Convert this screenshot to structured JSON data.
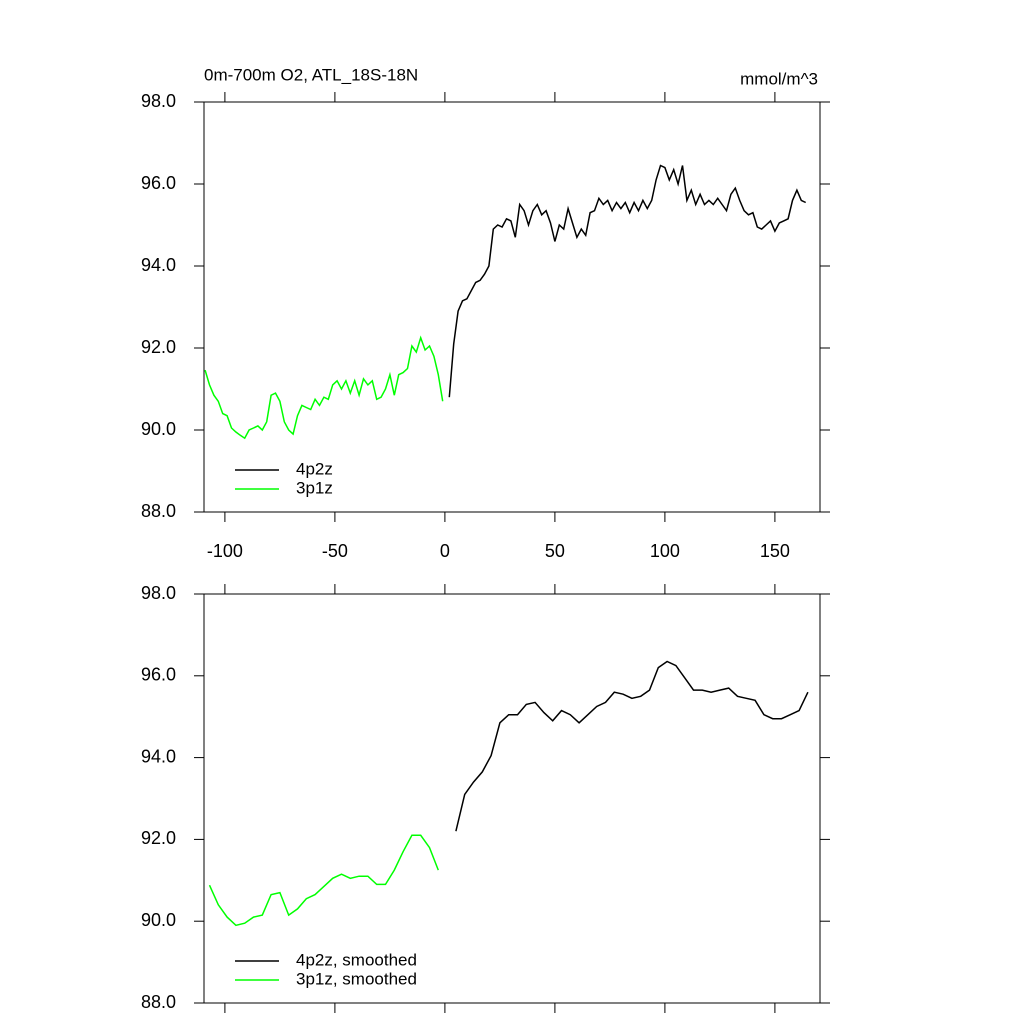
{
  "chart_data": [
    {
      "type": "line",
      "title": "0m-700m O2, ATL_18S-18N",
      "units": "mmol/m^3",
      "xlim": [
        -109.5,
        170.5
      ],
      "xticks": [
        -100,
        -50,
        0,
        50,
        100,
        150
      ],
      "show_xtick_labels": true,
      "ylim": [
        88,
        98
      ],
      "yticks": [
        {
          "value": 88,
          "label": "88.0"
        },
        {
          "value": 90,
          "label": "90.0"
        },
        {
          "value": 92,
          "label": "92.0"
        },
        {
          "value": 94,
          "label": "94.0"
        },
        {
          "value": 96,
          "label": "96.0"
        },
        {
          "value": 98,
          "label": "98.0"
        }
      ],
      "legend": "lower-left",
      "series": [
        {
          "name": "4p2z",
          "color": "#000000",
          "x": [
            2,
            4,
            6,
            8,
            10,
            12,
            14,
            16,
            18,
            20,
            22,
            24,
            26,
            28,
            30,
            32,
            34,
            36,
            38,
            40,
            42,
            44,
            46,
            48,
            50,
            52,
            54,
            56,
            58,
            60,
            62,
            64,
            66,
            68,
            70,
            72,
            74,
            76,
            78,
            80,
            82,
            84,
            86,
            88,
            90,
            92,
            94,
            96,
            98,
            100,
            102,
            104,
            106,
            108,
            110,
            112,
            114,
            116,
            118,
            120,
            122,
            124,
            126,
            128,
            130,
            132,
            134,
            136,
            138,
            140,
            142,
            144,
            146,
            148,
            150,
            152,
            154,
            156,
            158,
            160,
            162,
            164
          ],
          "values": [
            90.8,
            92.1,
            92.9,
            93.15,
            93.2,
            93.4,
            93.6,
            93.65,
            93.8,
            94.0,
            94.9,
            95.0,
            94.95,
            95.15,
            95.1,
            94.7,
            95.5,
            95.35,
            95.0,
            95.35,
            95.5,
            95.25,
            95.35,
            95.05,
            94.6,
            95.0,
            94.9,
            95.4,
            95.05,
            94.7,
            94.9,
            94.75,
            95.3,
            95.35,
            95.65,
            95.5,
            95.6,
            95.35,
            95.55,
            95.4,
            95.55,
            95.3,
            95.55,
            95.35,
            95.6,
            95.4,
            95.6,
            96.1,
            96.45,
            96.4,
            96.1,
            96.35,
            96.0,
            96.45,
            95.6,
            95.85,
            95.5,
            95.75,
            95.5,
            95.6,
            95.5,
            95.65,
            95.5,
            95.35,
            95.75,
            95.9,
            95.6,
            95.35,
            95.25,
            95.3,
            94.95,
            94.9,
            95.0,
            95.1,
            94.85,
            95.05,
            95.1,
            95.15,
            95.6,
            95.85,
            95.6,
            95.55
          ]
        },
        {
          "name": "3p1z",
          "color": "#00ff00",
          "x": [
            -109,
            -107,
            -105,
            -103,
            -101,
            -99,
            -97,
            -95,
            -93,
            -91,
            -89,
            -87,
            -85,
            -83,
            -81,
            -79,
            -77,
            -75,
            -73,
            -71,
            -69,
            -67,
            -65,
            -63,
            -61,
            -59,
            -57,
            -55,
            -53,
            -51,
            -49,
            -47,
            -45,
            -43,
            -41,
            -39,
            -37,
            -35,
            -33,
            -31,
            -29,
            -27,
            -25,
            -23,
            -21,
            -19,
            -17,
            -15,
            -13,
            -11,
            -9,
            -7,
            -5,
            -3,
            -1
          ],
          "values": [
            91.46,
            91.1,
            90.85,
            90.7,
            90.4,
            90.35,
            90.05,
            89.95,
            89.87,
            89.8,
            90.0,
            90.05,
            90.1,
            90.0,
            90.2,
            90.85,
            90.9,
            90.7,
            90.2,
            90.0,
            89.9,
            90.35,
            90.6,
            90.55,
            90.5,
            90.75,
            90.6,
            90.8,
            90.75,
            91.1,
            91.2,
            91.0,
            91.2,
            90.9,
            91.2,
            90.85,
            91.25,
            91.1,
            91.2,
            90.75,
            90.8,
            91.0,
            91.35,
            90.85,
            91.35,
            91.4,
            91.5,
            92.05,
            91.9,
            92.25,
            91.95,
            92.05,
            91.8,
            91.35,
            90.7
          ]
        }
      ]
    },
    {
      "type": "line",
      "xlim": [
        -109.5,
        170.5
      ],
      "xticks": [
        -100,
        -50,
        0,
        50,
        100,
        150
      ],
      "show_xtick_labels": false,
      "ylim": [
        88,
        98
      ],
      "yticks": [
        {
          "value": 88,
          "label": "88.0"
        },
        {
          "value": 90,
          "label": "90.0"
        },
        {
          "value": 92,
          "label": "92.0"
        },
        {
          "value": 94,
          "label": "94.0"
        },
        {
          "value": 96,
          "label": "96.0"
        },
        {
          "value": 98,
          "label": "98.0"
        }
      ],
      "legend": "lower-left",
      "series": [
        {
          "name": "4p2z, smoothed",
          "color": "#000000",
          "x": [
            5,
            9,
            13,
            17,
            21,
            25,
            29,
            33,
            37,
            41,
            45,
            49,
            53,
            57,
            61,
            65,
            69,
            73,
            77,
            81,
            85,
            89,
            93,
            97,
            101,
            105,
            109,
            113,
            117,
            121,
            125,
            129,
            133,
            137,
            141,
            145,
            149,
            153,
            157,
            161,
            165
          ],
          "values": [
            92.2,
            93.1,
            93.4,
            93.65,
            94.05,
            94.85,
            95.05,
            95.05,
            95.3,
            95.35,
            95.1,
            94.9,
            95.15,
            95.05,
            94.85,
            95.05,
            95.25,
            95.35,
            95.6,
            95.55,
            95.45,
            95.5,
            95.65,
            96.2,
            96.35,
            96.25,
            95.95,
            95.65,
            95.65,
            95.6,
            95.65,
            95.7,
            95.5,
            95.45,
            95.4,
            95.05,
            94.95,
            94.95,
            95.05,
            95.15,
            95.6
          ]
        },
        {
          "name": "3p1z, smoothed",
          "color": "#00ff00",
          "x": [
            -107,
            -103,
            -99,
            -95,
            -91,
            -87,
            -83,
            -79,
            -75,
            -71,
            -67,
            -63,
            -59,
            -55,
            -51,
            -47,
            -43,
            -39,
            -35,
            -31,
            -27,
            -23,
            -19,
            -15,
            -11,
            -7,
            -3
          ],
          "values": [
            90.88,
            90.4,
            90.1,
            89.9,
            89.95,
            90.1,
            90.15,
            90.65,
            90.7,
            90.15,
            90.3,
            90.55,
            90.65,
            90.85,
            91.05,
            91.15,
            91.05,
            91.1,
            91.1,
            90.9,
            90.9,
            91.25,
            91.7,
            92.1,
            92.1,
            91.8,
            91.25
          ]
        }
      ]
    }
  ]
}
